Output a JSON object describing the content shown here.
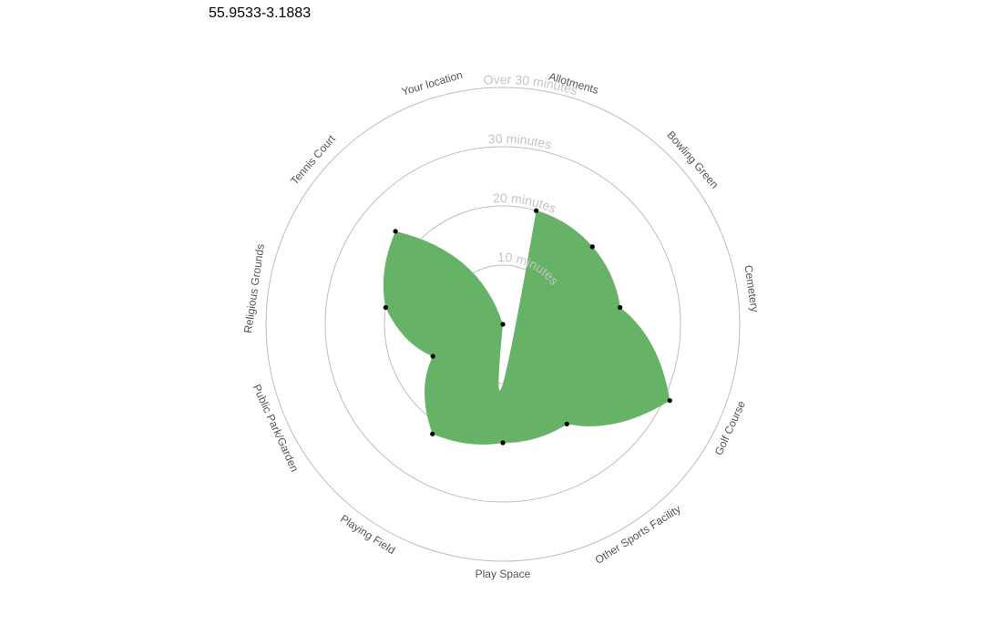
{
  "title": "55.9533-3.1883",
  "chart_data": {
    "type": "radar",
    "categories": [
      "Allotments",
      "Bowling Green",
      "Cemetery",
      "Golf Course",
      "Other Sports Facility",
      "Play Space",
      "Playing Field",
      "Public Park/Garden",
      "Religious Grounds",
      "Tennis Court",
      "Your location"
    ],
    "values": [
      20,
      20,
      20,
      31,
      20,
      20,
      22,
      13,
      20,
      24,
      0
    ],
    "ring_labels": [
      "10 minutes",
      "20 minutes",
      "30 minutes",
      "Over 30 minutes"
    ],
    "ring_values": [
      10,
      20,
      30,
      40
    ],
    "fill_color": "#66b266",
    "point_color": "#000000",
    "grid_color": "#bdbdbd"
  }
}
